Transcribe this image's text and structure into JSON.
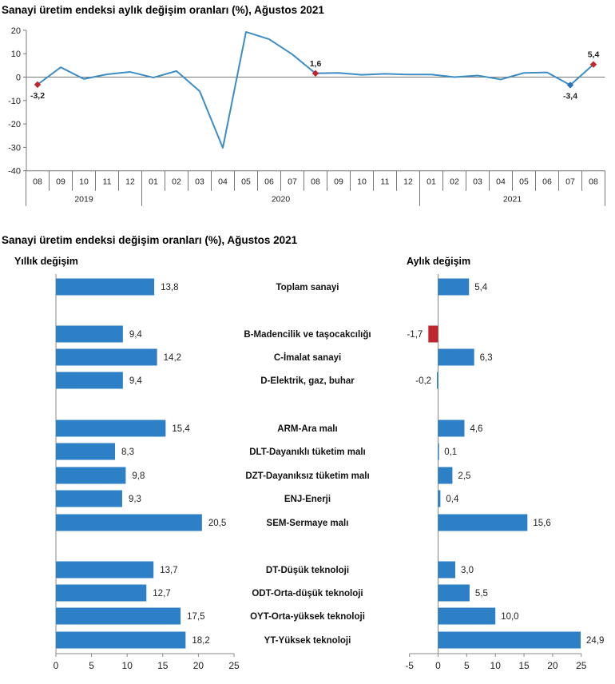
{
  "chart_data": [
    {
      "type": "line",
      "title": "Sanayi üretim endeksi aylık değişim oranları (%), Ağustos 2021",
      "y_ticks": [
        20,
        10,
        0,
        -10,
        -20,
        -30,
        -40
      ],
      "ylim": [
        -40,
        20
      ],
      "month_labels": [
        "08",
        "09",
        "10",
        "11",
        "12",
        "01",
        "02",
        "03",
        "04",
        "05",
        "06",
        "07",
        "08",
        "09",
        "10",
        "11",
        "12",
        "01",
        "02",
        "03",
        "04",
        "05",
        "06",
        "07",
        "08"
      ],
      "year_labels": [
        "2019",
        "2020",
        "2021"
      ],
      "values": [
        -3.2,
        4.2,
        -0.8,
        1.2,
        2.2,
        -0.2,
        2.6,
        -6.0,
        -30.2,
        19.3,
        16.2,
        9.7,
        1.6,
        1.8,
        1.0,
        1.4,
        1.1,
        1.1,
        0.0,
        0.7,
        -1.0,
        1.8,
        2.0,
        -3.4,
        5.4
      ],
      "point_labels": [
        {
          "index": 0,
          "text": "-3,2"
        },
        {
          "index": 12,
          "text": "1,6"
        },
        {
          "index": 23,
          "text": "-3,4"
        },
        {
          "index": 24,
          "text": "5,4"
        }
      ],
      "colors": {
        "line": "#3c8dc5",
        "marker_highlight": "#c0262d",
        "marker_blue": "#2e73b8"
      },
      "grid": false
    },
    {
      "type": "bar",
      "title": "Sanayi üretim endeksi değişim oranları (%), Ağustos 2021",
      "left_panel_title": "Yıllık değişim",
      "right_panel_title": "Aylık değişim",
      "categories": [
        {
          "label": "Toplam sanayi",
          "group": 0
        },
        {
          "label": "B-Madencilik ve taşocakcılığı",
          "group": 1
        },
        {
          "label": "C-İmalat sanayi",
          "group": 1
        },
        {
          "label": "D-Elektrik, gaz, buhar",
          "group": 1
        },
        {
          "label": "ARM-Ara malı",
          "group": 2
        },
        {
          "label": "DLT-Dayanıklı tüketim malı",
          "group": 2
        },
        {
          "label": "DZT-Dayanıksız tüketim malı",
          "group": 2
        },
        {
          "label": "ENJ-Enerji",
          "group": 2
        },
        {
          "label": "SEM-Sermaye malı",
          "group": 2
        },
        {
          "label": "DT-Düşük teknoloji",
          "group": 3
        },
        {
          "label": "ODT-Orta-düşük teknoloji",
          "group": 3
        },
        {
          "label": "OYT-Orta-yüksek teknoloji",
          "group": 3
        },
        {
          "label": "YT-Yüksek teknoloji",
          "group": 3
        }
      ],
      "annual": {
        "values": [
          13.8,
          9.4,
          14.2,
          9.4,
          15.4,
          8.3,
          9.8,
          9.3,
          20.5,
          13.7,
          12.7,
          17.5,
          18.2
        ],
        "labels": [
          "13,8",
          "9,4",
          "14,2",
          "9,4",
          "15,4",
          "8,3",
          "9,8",
          "9,3",
          "20,5",
          "13,7",
          "12,7",
          "17,5",
          "18,2"
        ],
        "xlim": [
          0,
          25
        ],
        "ticks": [
          0,
          5,
          10,
          15,
          20,
          25
        ]
      },
      "monthly": {
        "values": [
          5.4,
          -1.7,
          6.3,
          -0.2,
          4.6,
          0.1,
          2.5,
          0.4,
          15.6,
          3.0,
          5.5,
          10.0,
          24.9
        ],
        "labels": [
          "5,4",
          "-1,7",
          "6,3",
          "-0,2",
          "4,6",
          "0,1",
          "2,5",
          "0,4",
          "15,6",
          "3,0",
          "5,5",
          "10,0",
          "24,9"
        ],
        "xlim": [
          -5,
          25
        ],
        "ticks": [
          -5,
          0,
          5,
          10,
          15,
          20,
          25
        ]
      },
      "colors": {
        "bar": "#2e80c6",
        "negative_bar": "#c0262d"
      },
      "grid": false
    }
  ]
}
